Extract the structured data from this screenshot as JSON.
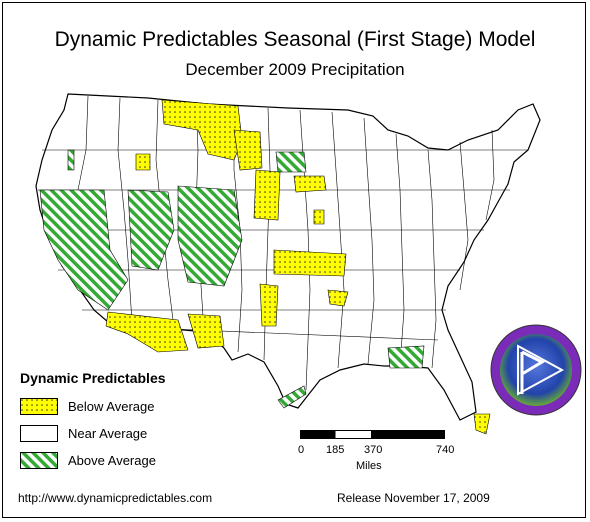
{
  "title": "Dynamic Predictables Seasonal (First Stage) Model",
  "subtitle": "December 2009 Precipitation",
  "legend": {
    "title": "Dynamic Predictables",
    "items": [
      {
        "label": "Below Average",
        "pattern": "yellow-dots",
        "color": "#ffff00"
      },
      {
        "label": "Near Average",
        "pattern": "white",
        "color": "#ffffff"
      },
      {
        "label": "Above Average",
        "pattern": "green-stripes",
        "color": "#33aa33"
      }
    ]
  },
  "scale": {
    "ticks": [
      "0",
      "185",
      "370",
      "740"
    ],
    "units": "Miles"
  },
  "footer": {
    "url": "http://www.dynamicpredictables.com",
    "release": "Release November 17, 2009"
  },
  "colors": {
    "below": "#ffff00",
    "above": "#33aa33",
    "border": "#000000",
    "logo_outer": "#8a1fbf",
    "logo_inner": "#3355cc"
  }
}
